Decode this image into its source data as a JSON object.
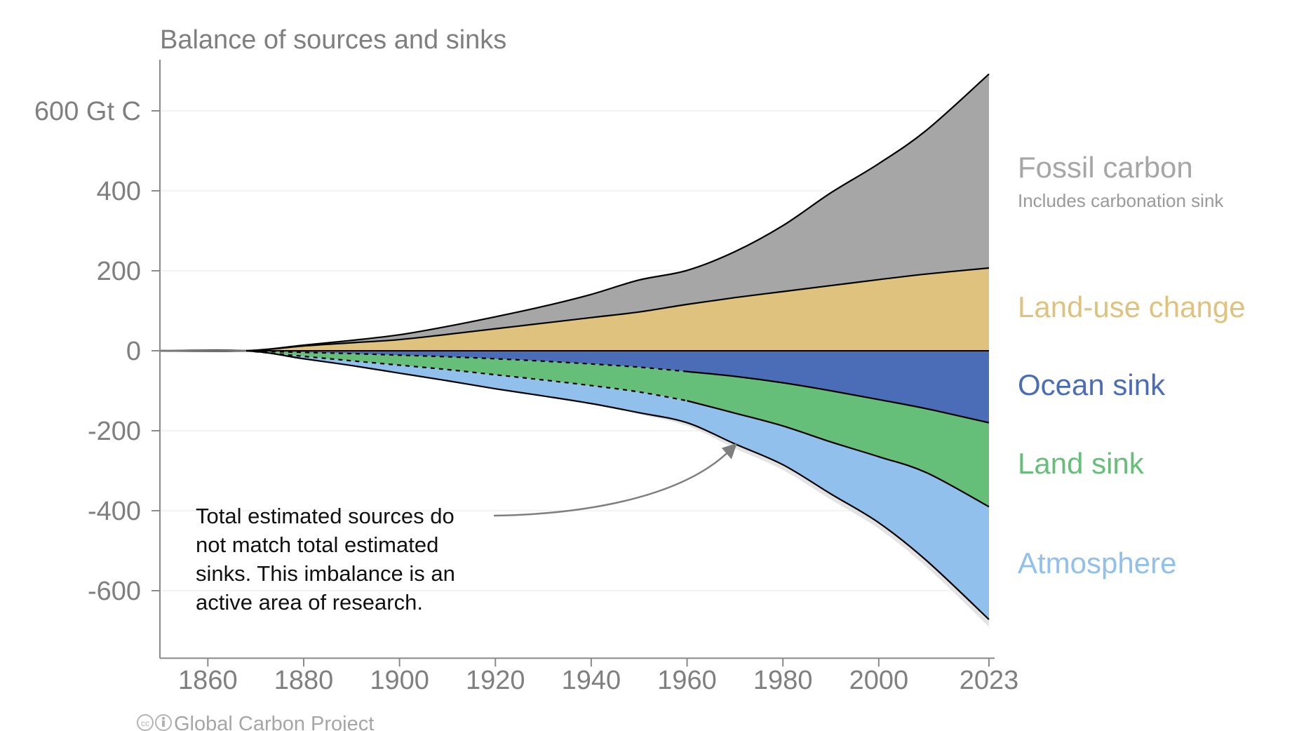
{
  "chart_data": {
    "type": "area",
    "title": "Balance of sources and sinks",
    "y_unit": "Gt C",
    "ylim": [
      -760,
      700
    ],
    "y_ticks": [
      {
        "value": 600,
        "label": "600 Gt C"
      },
      {
        "value": 400,
        "label": "400"
      },
      {
        "value": 200,
        "label": "200"
      },
      {
        "value": 0,
        "label": "0"
      },
      {
        "value": -200,
        "label": "-200"
      },
      {
        "value": -400,
        "label": "-400"
      },
      {
        "value": -600,
        "label": "-600"
      }
    ],
    "x_ticks": [
      {
        "value": 1860,
        "label": "1860"
      },
      {
        "value": 1880,
        "label": "1880"
      },
      {
        "value": 1900,
        "label": "1900"
      },
      {
        "value": 1920,
        "label": "1920"
      },
      {
        "value": 1940,
        "label": "1940"
      },
      {
        "value": 1960,
        "label": "1960"
      },
      {
        "value": 1980,
        "label": "1980"
      },
      {
        "value": 2000,
        "label": "2000"
      },
      {
        "value": 2023,
        "label": "2023"
      }
    ],
    "xlim": [
      1850,
      2023
    ],
    "grid": true,
    "x": [
      1850,
      1868,
      1880,
      1890,
      1900,
      1910,
      1920,
      1930,
      1940,
      1950,
      1960,
      1970,
      1980,
      1990,
      2000,
      2010,
      2023
    ],
    "sources": [
      {
        "name": "Land-use change",
        "color": "#dfc27d",
        "values": [
          0,
          0,
          12,
          20,
          28,
          41,
          55,
          69,
          83,
          97,
          116,
          133,
          148,
          163,
          178,
          192,
          207
        ]
      },
      {
        "name": "Fossil carbon",
        "note": "Includes carbonation sink",
        "color": "#a6a6a6",
        "values": [
          0,
          0,
          2,
          6,
          12,
          20,
          30,
          42,
          58,
          80,
          85,
          115,
          165,
          232,
          290,
          360,
          485
        ]
      }
    ],
    "sinks": [
      {
        "name": "Ocean sink",
        "color": "#4b6cb7",
        "values": [
          0,
          0,
          -4,
          -7,
          -11,
          -15,
          -20,
          -26,
          -33,
          -41,
          -52,
          -64,
          -80,
          -100,
          -122,
          -145,
          -180
        ]
      },
      {
        "name": "Land sink",
        "color": "#66bf78",
        "values": [
          0,
          0,
          -10,
          -18,
          -25,
          -32,
          -40,
          -47,
          -54,
          -62,
          -73,
          -92,
          -108,
          -128,
          -143,
          -160,
          -210
        ]
      },
      {
        "name": "Atmosphere",
        "color": "#90c0eb",
        "values": [
          0,
          0,
          -6,
          -12,
          -20,
          -28,
          -35,
          -40,
          -45,
          -52,
          -55,
          -77,
          -97,
          -130,
          -165,
          -220,
          -282
        ]
      }
    ],
    "imbalance_band_color": "#e3e3e3",
    "imbalance": [
      0,
      0,
      0,
      0,
      0,
      0,
      0,
      0,
      0,
      4,
      8,
      11,
      13,
      14,
      15,
      16,
      18
    ],
    "annotation": {
      "lines": [
        "Total estimated sources do",
        "not match total estimated",
        "sinks. This imbalance is an",
        "active area of research."
      ],
      "arrow_target": {
        "x": 1970,
        "y": -245
      }
    },
    "credit": "Global Carbon Project"
  }
}
